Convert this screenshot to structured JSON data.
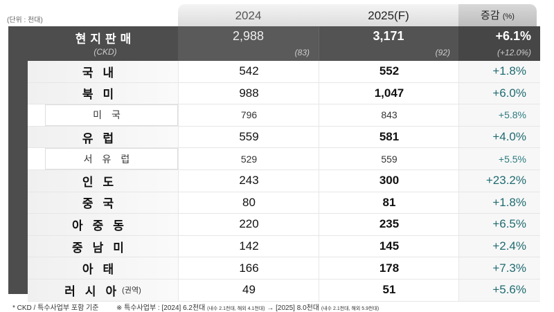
{
  "unit_label": "(단위 : 천대)",
  "headers": {
    "y2024": "2024",
    "y2025": "2025(F)",
    "change": "증감",
    "change_unit": "(%)"
  },
  "total": {
    "label": "현지판매",
    "sub_label": "(CKD)",
    "y2024": "2,988",
    "y2025": "3,171",
    "change": "+6.1%",
    "ckd_2024": "(83)",
    "ckd_2025": "(92)",
    "ckd_change": "(+12.0%)"
  },
  "rows": [
    {
      "label": "국내",
      "y2024": "542",
      "y2025": "552",
      "change": "+1.8%"
    },
    {
      "label": "북미",
      "y2024": "988",
      "y2025": "1,047",
      "change": "+6.0%"
    },
    {
      "label": "미국",
      "y2024": "796",
      "y2025": "843",
      "change": "+5.8%"
    },
    {
      "label": "유럽",
      "y2024": "559",
      "y2025": "581",
      "change": "+4.0%"
    },
    {
      "label": "서유럽",
      "y2024": "529",
      "y2025": "559",
      "change": "+5.5%"
    },
    {
      "label": "인도",
      "y2024": "243",
      "y2025": "300",
      "change": "+23.2%"
    },
    {
      "label": "중국",
      "y2024": "80",
      "y2025": "81",
      "change": "+1.8%"
    },
    {
      "label": "아중동",
      "y2024": "220",
      "y2025": "235",
      "change": "+6.5%"
    },
    {
      "label": "중남미",
      "y2024": "142",
      "y2025": "145",
      "change": "+2.4%"
    },
    {
      "label": "아태",
      "y2024": "166",
      "y2025": "178",
      "change": "+7.3%"
    },
    {
      "label": "러시아",
      "label_note": "(권역)",
      "y2024": "49",
      "y2025": "51",
      "change": "+5.6%"
    }
  ],
  "footnotes": {
    "left": "* CKD / 특수사업부 포함 기준",
    "right_a": "※ 특수사업부 : [2024] 6.2천대",
    "right_a_note": "(내수 2.1천대, 해외 4.1천대)",
    "arrow": "→",
    "right_b": "[2025] 8.0천대",
    "right_b_note": "(내수 2.1천대, 해외 5.9천대)"
  }
}
